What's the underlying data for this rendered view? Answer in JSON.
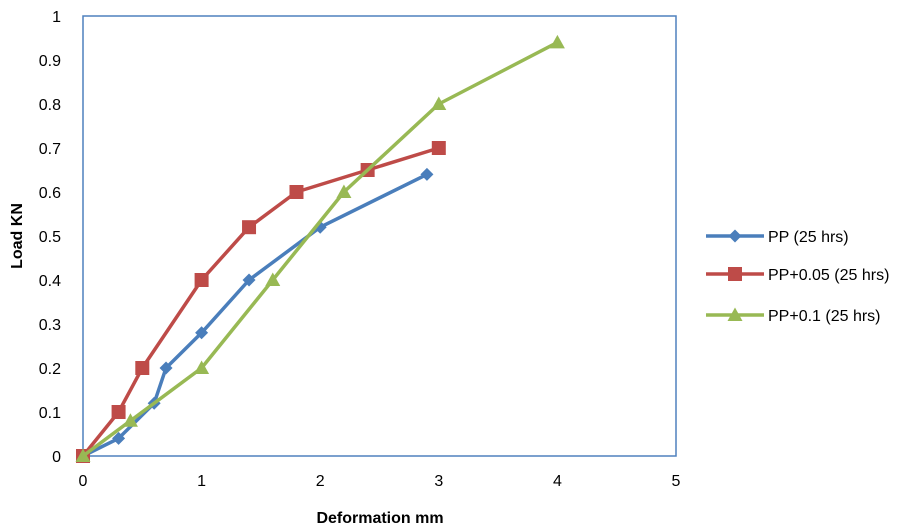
{
  "chart_data": {
    "type": "line",
    "title": "",
    "xlabel": "Deformation mm",
    "ylabel": "Load KN",
    "xlim": [
      0,
      5
    ],
    "ylim": [
      0,
      1
    ],
    "x_ticks": [
      "0",
      "1",
      "2",
      "3",
      "4",
      "5"
    ],
    "y_ticks": [
      "0",
      "0.1",
      "0.2",
      "0.3",
      "0.4",
      "0.5",
      "0.6",
      "0.7",
      "0.8",
      "0.9",
      "1"
    ],
    "grid": false,
    "legend_position": "right",
    "series": [
      {
        "name": "PP (25 hrs)",
        "color": "#4a7ebb",
        "marker": "diamond",
        "points": [
          [
            0,
            0
          ],
          [
            0.3,
            0.04
          ],
          [
            0.6,
            0.12
          ],
          [
            0.7,
            0.2
          ],
          [
            1.0,
            0.28
          ],
          [
            1.4,
            0.4
          ],
          [
            2.0,
            0.52
          ],
          [
            2.9,
            0.64
          ]
        ]
      },
      {
        "name": "PP+0.05  (25 hrs)",
        "color": "#be4b48",
        "marker": "square",
        "points": [
          [
            0,
            0
          ],
          [
            0.3,
            0.1
          ],
          [
            0.5,
            0.2
          ],
          [
            1.0,
            0.4
          ],
          [
            1.4,
            0.52
          ],
          [
            1.8,
            0.6
          ],
          [
            2.4,
            0.65
          ],
          [
            3.0,
            0.7
          ]
        ]
      },
      {
        "name": "PP+0.1   (25 hrs)",
        "color": "#98b954",
        "marker": "triangle",
        "points": [
          [
            0,
            0
          ],
          [
            0.4,
            0.08
          ],
          [
            1.0,
            0.2
          ],
          [
            1.6,
            0.4
          ],
          [
            2.2,
            0.6
          ],
          [
            3.0,
            0.8
          ],
          [
            4.0,
            0.94
          ]
        ]
      }
    ]
  }
}
